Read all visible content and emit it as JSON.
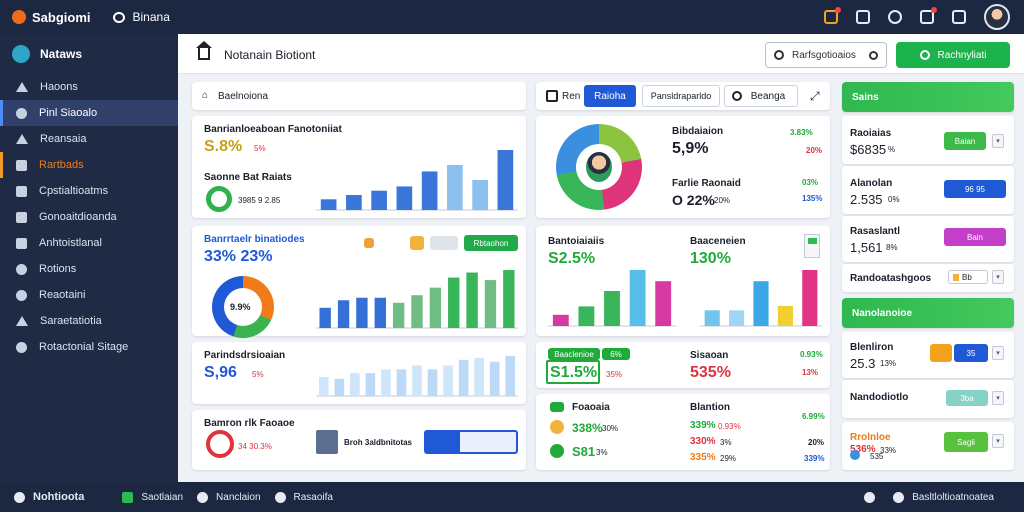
{
  "topbar": {
    "app_name": "Sabgiomi",
    "chat_label": "Binana"
  },
  "sidebar": {
    "header": "Nataws",
    "items": [
      {
        "label": "Haoons"
      },
      {
        "label": "Pinl Siaoalo"
      },
      {
        "label": "Reansaia"
      },
      {
        "label": "Rartbads"
      },
      {
        "label": "Cpstialtioatms"
      },
      {
        "label": "Gonoaitdioanda"
      },
      {
        "label": "Anhtoistlanal"
      },
      {
        "label": "Rotions"
      },
      {
        "label": "Reaotaini"
      },
      {
        "label": "Saraetatiotia"
      },
      {
        "label": "Rotactonial Sitage"
      }
    ]
  },
  "header": {
    "title": "Notanain Biotiont",
    "search_placeholder": "Rarfsgotioaios",
    "cta_label": "Rachnyliati"
  },
  "col1": {
    "filter_title": "Baelnoiona",
    "card1": {
      "title": "Banrianloeaboan Fanotoniiat",
      "value": "S.8%",
      "value_suffix": "5%",
      "sub_title": "Saonne Bat Raiats",
      "sub_value": "3985 9 2.85"
    },
    "card2": {
      "title": "Banrrtaelr binatiodes",
      "value": "33% 23%",
      "donut_label": "9.9%",
      "button": "Rbtaohon"
    },
    "card3": {
      "title": "Parindsdrsioaian",
      "value": "S,96",
      "value_suffix": "5%"
    },
    "card4": {
      "title": "Bamron rlk Faoaoe",
      "sub": "34 30.3%",
      "field": "Broh 3aldbnitotas"
    }
  },
  "col2": {
    "tabs": [
      "Ren",
      "Raioha",
      "Pansldraparldo",
      "Beanga"
    ],
    "donut_card": {
      "label1": "Bibdaiaion",
      "value1": "5,9%",
      "delta1": "3.83%",
      "delta1b": "20%",
      "label2": "Farlie Raonaid",
      "value2": "O 22%",
      "value2_suffix": "20%",
      "delta2": "03%",
      "delta2b": "135%"
    },
    "bar_card": {
      "left_title": "Bantoiaiaiis",
      "left_value": "S2.5%",
      "right_title": "Baaceneien",
      "right_value": "130%"
    },
    "stat_card": {
      "badge": "Baaclenioe",
      "badge_sub": "6%",
      "value": "S1.5%",
      "value_suffix": "35%",
      "right_title": "Sisaoan",
      "right_value": "535%",
      "delta": "0.93%",
      "delta_sub": "13%"
    },
    "list_card": {
      "left_title": "Foaoaia",
      "rows": [
        {
          "text": "338%",
          "suffix": "30%"
        },
        {
          "text": "S81",
          "suffix": "3%"
        }
      ],
      "right_title": "Blantion",
      "right_rows": [
        {
          "text": "339%",
          "suffix": "0.93%"
        },
        {
          "text": "330%",
          "suffix": "3%"
        },
        {
          "text": "335%",
          "suffix": "29%"
        }
      ],
      "right_deltas": [
        "6.99%",
        "20%",
        "339%"
      ]
    }
  },
  "col3": {
    "header1": "Sains",
    "rows1": [
      {
        "title": "Raoiaias",
        "value": "$6835",
        "suffix": "%",
        "button": "Baian"
      },
      {
        "title": "Alanolan",
        "value": "2.535",
        "suffix": "0%",
        "button": "96 95"
      },
      {
        "title": "Rasaslantl",
        "value": "1,561",
        "suffix": "8%",
        "button": "Bain"
      },
      {
        "title": "Randoatashgoos",
        "button": "Bb"
      }
    ],
    "header2": "Nanolanoioe",
    "rows2": [
      {
        "title": "Blenliron",
        "value": "25.3",
        "suffix": "13%",
        "button": "35"
      },
      {
        "title": "Nandodiotlo",
        "button": "3ba"
      },
      {
        "title": "Rrolnloe",
        "value": "536%",
        "suffix": "33%",
        "button": "Sagli"
      },
      {
        "title": "",
        "value": "535",
        "suffix": ""
      }
    ]
  },
  "bottombar": {
    "items": [
      "Nohtioota",
      "Saotlaian",
      "Nanclaion",
      "Rasaoifa"
    ],
    "right": "Basltloltioatnoatea"
  },
  "chart_data": [
    {
      "type": "bar",
      "values": [
        5,
        7,
        9,
        11,
        18,
        21,
        14,
        28
      ],
      "colors": [
        "#3a75d9",
        "#3a75d9",
        "#3a75d9",
        "#3a75d9",
        "#3a75d9",
        "#8cc0ee",
        "#8cc0ee",
        "#3a75d9"
      ]
    },
    {
      "type": "bar",
      "values": [
        8,
        11,
        12,
        12,
        10,
        13,
        16,
        20,
        22,
        19,
        23
      ],
      "colors": [
        "#3470d6",
        "#3470d6",
        "#3470d6",
        "#3470d6",
        "#6fbd82",
        "#6fbd82",
        "#6fbd82",
        "#39b65a",
        "#39b65a",
        "#6fbd82",
        "#39b65a"
      ]
    },
    {
      "type": "bar",
      "values": [
        10,
        9,
        12,
        12,
        14,
        14,
        16,
        14,
        16,
        19,
        20,
        18,
        21
      ],
      "colors": [
        "#cfe5fa",
        "#bcdaf7",
        "#cfe5fa",
        "#bcdaf7",
        "#cfe5fa",
        "#bcdaf7",
        "#cfe5fa",
        "#bcdaf7",
        "#cfe5fa",
        "#bcdaf7",
        "#cfe5fa",
        "#bcdaf7",
        "#bcdaf7"
      ]
    },
    {
      "type": "bar",
      "values": [
        8,
        14,
        25,
        40,
        32
      ],
      "colors": [
        "#d53aa2",
        "#39b65a",
        "#39b65a",
        "#57bde9",
        "#d53aa2"
      ]
    },
    {
      "type": "bar",
      "values": [
        14,
        14,
        40,
        18,
        50
      ],
      "colors": [
        "#71c4ec",
        "#9fd6f2",
        "#3aa8e6",
        "#f2cf2f",
        "#e23386"
      ]
    }
  ]
}
